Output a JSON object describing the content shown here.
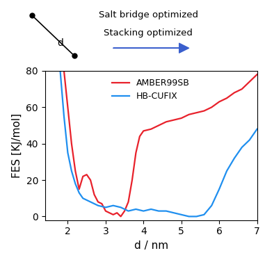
{
  "chart_data": {
    "type": "line",
    "x_label": "d / nm",
    "y_label": "FES [KJ/mol]",
    "annotations": [
      "Salt bridge optimized",
      "Stacking optimized",
      "d"
    ],
    "xlim": [
      1.4,
      7
    ],
    "xticks": [
      2,
      3,
      4,
      5,
      6,
      7
    ],
    "ylim": [
      -2,
      80
    ],
    "yticks": [
      0,
      20,
      40,
      60,
      80
    ],
    "legend": "upper center",
    "series": [
      {
        "name": "AMBER99SB",
        "color": "#e8212b",
        "x": [
          1.9,
          2.0,
          2.1,
          2.2,
          2.3,
          2.4,
          2.5,
          2.6,
          2.7,
          2.8,
          2.9,
          3.0,
          3.1,
          3.2,
          3.3,
          3.4,
          3.5,
          3.6,
          3.7,
          3.8,
          3.9,
          4.0,
          4.2,
          4.4,
          4.6,
          4.8,
          5.0,
          5.2,
          5.4,
          5.6,
          5.8,
          6.0,
          6.2,
          6.4,
          6.6,
          6.8,
          7.0
        ],
        "values": [
          80,
          60,
          40,
          25,
          15,
          22,
          23,
          20,
          12,
          8,
          7,
          3,
          2,
          1,
          2,
          0,
          3,
          8,
          20,
          35,
          44,
          47,
          48,
          50,
          52,
          53,
          54,
          56,
          57,
          58,
          60,
          63,
          65,
          68,
          70,
          74,
          78
        ]
      },
      {
        "name": "HB-CUFIX",
        "color": "#1f8fef",
        "x": [
          1.8,
          1.9,
          2.0,
          2.1,
          2.2,
          2.3,
          2.4,
          2.6,
          2.8,
          3.0,
          3.2,
          3.4,
          3.6,
          3.8,
          4.0,
          4.2,
          4.4,
          4.6,
          4.8,
          5.0,
          5.2,
          5.4,
          5.6,
          5.8,
          6.0,
          6.2,
          6.4,
          6.6,
          6.8,
          7.0
        ],
        "values": [
          80,
          55,
          35,
          25,
          18,
          13,
          10,
          8,
          6,
          5,
          6,
          5,
          3,
          4,
          3,
          4,
          3,
          3,
          2,
          1,
          0,
          0,
          1,
          6,
          15,
          25,
          32,
          38,
          42,
          48
        ]
      }
    ]
  }
}
